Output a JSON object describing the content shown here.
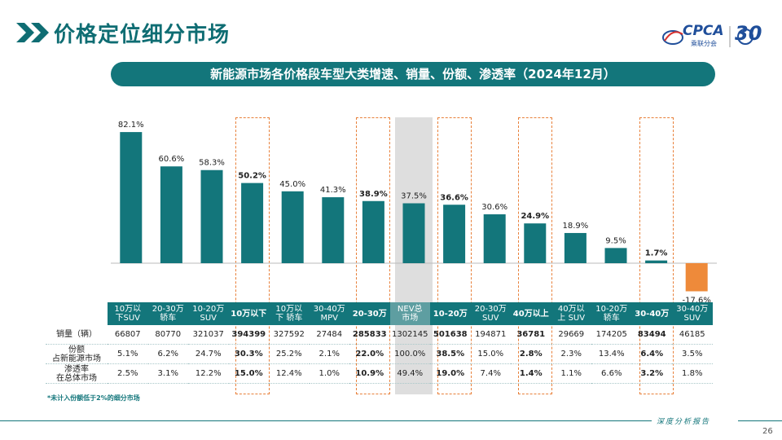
{
  "header": {
    "title": "价格定位细分市场",
    "logo_text": "CPCA",
    "logo_sub": "乘联分会",
    "logo_30": "30"
  },
  "subtitle": "新能源市场各价格段车型大类增速、销量、份额、渗透率（2024年12月）",
  "colors": {
    "bar_positive": "#13767b",
    "bar_negative": "#ee8a3a",
    "highlight_border": "#e8803a",
    "header_bg": "#13767b"
  },
  "chart_data": {
    "type": "bar",
    "categories": [
      "10万以下SUV",
      "20-30万轿车",
      "10-20万SUV",
      "10万以下",
      "10万以下轿车",
      "30-40万MPV",
      "20-30万",
      "NEV总市场",
      "10-20万",
      "20-30万SUV",
      "40万以上",
      "40万以上SUV",
      "10-20万轿车",
      "30-40万",
      "30-40万SUV"
    ],
    "values": [
      82.1,
      60.6,
      58.3,
      50.2,
      45.0,
      41.3,
      38.9,
      37.5,
      36.6,
      30.6,
      24.9,
      18.9,
      9.5,
      1.7,
      -17.6
    ],
    "value_labels": [
      "82.1%",
      "60.6%",
      "58.3%",
      "50.2%",
      "45.0%",
      "41.3%",
      "38.9%",
      "37.5%",
      "36.6%",
      "30.6%",
      "24.9%",
      "18.9%",
      "9.5%",
      "1.7%",
      "-17.6%"
    ],
    "bold": [
      false,
      false,
      false,
      true,
      false,
      false,
      true,
      false,
      true,
      false,
      true,
      false,
      false,
      true,
      false
    ],
    "highlighted": [
      3,
      6,
      8,
      10,
      13
    ],
    "shaded": [
      7
    ],
    "ylim": [
      -20,
      90
    ]
  },
  "table": {
    "headers": [
      [
        "10万以",
        "下SUV"
      ],
      [
        "20-30万",
        "轿车"
      ],
      [
        "10-20万",
        "SUV"
      ],
      [
        "10万以下",
        ""
      ],
      [
        "10万以",
        "下 轿车"
      ],
      [
        "30-40万",
        "MPV"
      ],
      [
        "20-30万",
        ""
      ],
      [
        "NEV总",
        "市场"
      ],
      [
        "10-20万",
        ""
      ],
      [
        "20-30万",
        "SUV"
      ],
      [
        "40万以上",
        ""
      ],
      [
        "40万以",
        "上 SUV"
      ],
      [
        "10-20万",
        "轿车"
      ],
      [
        "30-40万",
        ""
      ],
      [
        "30-40万",
        "SUV"
      ]
    ],
    "rows": [
      {
        "label": [
          "销量（辆）"
        ],
        "values": [
          "66807",
          "80770",
          "321037",
          "394399",
          "327592",
          "27484",
          "285833",
          "1302145",
          "501638",
          "194871",
          "36781",
          "29669",
          "174205",
          "83494",
          "46185"
        ]
      },
      {
        "label": [
          "份额",
          "占新能源市场"
        ],
        "values": [
          "5.1%",
          "6.2%",
          "24.7%",
          "30.3%",
          "25.2%",
          "2.1%",
          "22.0%",
          "100.0%",
          "38.5%",
          "15.0%",
          "2.8%",
          "2.3%",
          "13.4%",
          "6.4%",
          "3.5%"
        ]
      },
      {
        "label": [
          "渗透率",
          "在总体市场"
        ],
        "values": [
          "2.5%",
          "3.1%",
          "12.2%",
          "15.0%",
          "12.4%",
          "1.0%",
          "10.9%",
          "49.4%",
          "19.0%",
          "7.4%",
          "1.4%",
          "1.1%",
          "6.6%",
          "3.2%",
          "1.8%"
        ]
      }
    ]
  },
  "footnote": "*未计入份额低于2%的细分市场",
  "footer": {
    "text": "深度分析报告",
    "page": "26"
  }
}
